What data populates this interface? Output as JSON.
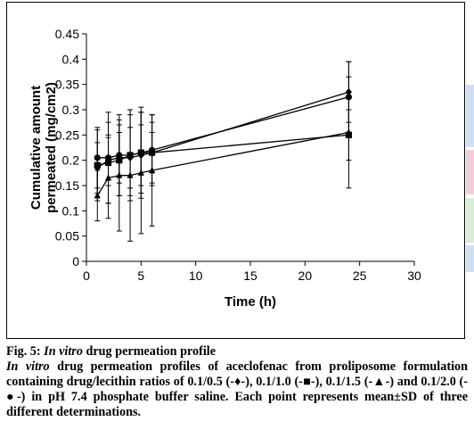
{
  "chart_data": {
    "type": "line",
    "title": "",
    "xlabel": "Time (h)",
    "ylabel_line1": "Cumulative amount",
    "ylabel_line2": "permeated (mg/cm2)",
    "xlim": [
      0,
      30
    ],
    "ylim": [
      0,
      0.45
    ],
    "x_ticks": [
      0,
      5,
      10,
      15,
      20,
      25,
      30
    ],
    "y_ticks": [
      0,
      0.05,
      0.1,
      0.15,
      0.2,
      0.25,
      0.3,
      0.35,
      0.4,
      0.45
    ],
    "grid": false,
    "legend": "none",
    "series": [
      {
        "marker": "diamond",
        "x": [
          1,
          2,
          3,
          4,
          5,
          6,
          24
        ],
        "y": [
          0.185,
          0.2,
          0.205,
          0.205,
          0.21,
          0.215,
          0.335
        ],
        "err": [
          0.05,
          0.05,
          0.05,
          0.06,
          0.06,
          0.04,
          0.06
        ]
      },
      {
        "marker": "square",
        "x": [
          1,
          2,
          3,
          4,
          5,
          6,
          24
        ],
        "y": [
          0.19,
          0.195,
          0.2,
          0.21,
          0.215,
          0.215,
          0.25
        ],
        "err": [
          0.07,
          0.08,
          0.07,
          0.08,
          0.08,
          0.06,
          0.05
        ]
      },
      {
        "marker": "triangle",
        "x": [
          1,
          2,
          3,
          4,
          5,
          6,
          24
        ],
        "y": [
          0.13,
          0.165,
          0.17,
          0.17,
          0.175,
          0.18,
          0.255
        ],
        "err": [
          0.05,
          0.08,
          0.11,
          0.13,
          0.12,
          0.11,
          0.11
        ]
      },
      {
        "marker": "circle",
        "x": [
          1,
          2,
          3,
          4,
          5,
          6,
          24
        ],
        "y": [
          0.205,
          0.205,
          0.21,
          0.21,
          0.215,
          0.22,
          0.325
        ],
        "err": [
          0.06,
          0.09,
          0.08,
          0.09,
          0.09,
          0.07,
          0.07
        ]
      }
    ]
  },
  "caption": {
    "fig_label": "Fig. 5: ",
    "title_italic": "In vitro",
    "title_rest": " drug permeation profile",
    "body_italic": "In vitro",
    "body_rest": " drug permeation profiles of aceclofenac from proliposome formulation containing drug/lecithin ratios of 0.1/0.5 (-♦-), 0.1/1.0 (-■-), 0.1/1.5 (-▲-) and 0.1/2.0 (-●-) in pH 7.4 phosphate buffer saline. Each point represents mean±SD of three different determinations."
  }
}
